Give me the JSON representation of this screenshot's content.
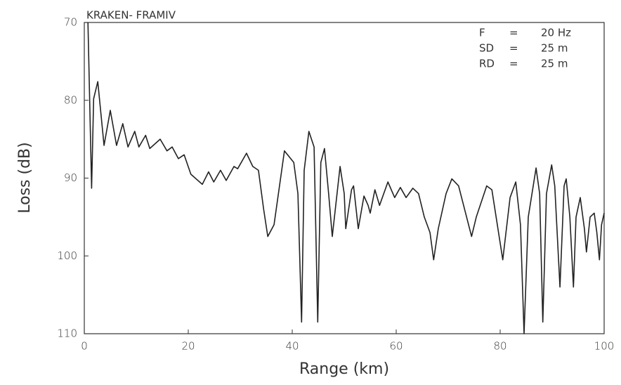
{
  "chart_data": {
    "type": "line",
    "title": "KRAKEN- FRAMIV",
    "x_label": "Range (km)",
    "y_label": "Loss (dB)",
    "annotations": [
      [
        "F",
        "=",
        "20 Hz"
      ],
      [
        "SD",
        "=",
        "25 m"
      ],
      [
        "RD",
        "=",
        "25 m"
      ]
    ],
    "xlim": [
      0,
      100
    ],
    "xticks": [
      0,
      20,
      40,
      60,
      80,
      100
    ],
    "ylim": [
      70,
      110
    ],
    "yticks": [
      70,
      80,
      90,
      100,
      110
    ],
    "invert_y": true,
    "grid": false,
    "series": [
      {
        "color": "#222222",
        "x": [
          0.7,
          1.4,
          1.8,
          2.6,
          3.8,
          5.0,
          6.2,
          7.4,
          8.4,
          9.7,
          10.5,
          11.8,
          12.6,
          14.6,
          15.9,
          16.9,
          18.1,
          19.2,
          20.5,
          22.7,
          23.9,
          24.9,
          26.2,
          27.3,
          28.8,
          29.5,
          31.2,
          32.4,
          33.5,
          34.5,
          35.3,
          36.5,
          38.5,
          40.3,
          41.1,
          41.8,
          42.3,
          43.2,
          44.2,
          44.9,
          45.5,
          46.2,
          47.0,
          47.7,
          49.2,
          50.0,
          50.3,
          51.4,
          51.8,
          52.7,
          53.8,
          54.6,
          55.0,
          55.9,
          56.8,
          58.4,
          59.7,
          60.8,
          61.9,
          63.2,
          64.3,
          65.4,
          66.5,
          67.2,
          68.1,
          69.6,
          70.7,
          72.0,
          74.5,
          75.4,
          77.4,
          78.4,
          80.5,
          81.9,
          83.0,
          83.9,
          84.6,
          85.4,
          86.9,
          87.6,
          88.2,
          88.9,
          89.9,
          90.5,
          91.5,
          92.3,
          92.7,
          93.4,
          94.1,
          94.6,
          95.4,
          96.2,
          96.6,
          97.3,
          98.1,
          98.6,
          99.1,
          99.5,
          100
        ],
        "values": [
          70,
          91.3,
          79.8,
          77.6,
          85.8,
          81.3,
          85.8,
          83,
          86,
          84,
          86,
          84.5,
          86.2,
          85,
          86.5,
          86,
          87.5,
          87,
          89.5,
          90.8,
          89.2,
          90.5,
          89,
          90.3,
          88.5,
          88.8,
          86.8,
          88.5,
          89,
          94,
          97.5,
          96,
          86.5,
          88,
          92,
          108.5,
          89,
          84,
          86,
          108.5,
          88,
          86.2,
          92,
          97.5,
          88.5,
          92,
          96.5,
          91.5,
          91,
          96.5,
          92.3,
          93.5,
          94.5,
          91.5,
          93.5,
          90.5,
          92.5,
          91.2,
          92.5,
          91.3,
          92,
          95,
          97,
          100.5,
          96.5,
          92,
          90.1,
          91,
          97.5,
          95,
          91,
          91.5,
          100.5,
          92.5,
          90.5,
          96,
          110,
          95,
          88.7,
          92,
          108.5,
          92,
          88.3,
          91,
          104,
          91,
          90.1,
          95,
          104,
          95,
          92.5,
          96.5,
          99.5,
          95,
          94.5,
          97,
          100.5,
          96,
          94.5
        ]
      }
    ]
  }
}
